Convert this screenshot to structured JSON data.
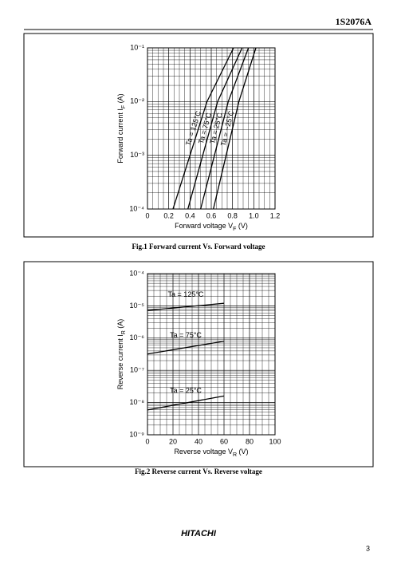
{
  "header": {
    "part_number": "1S2076A"
  },
  "footer": {
    "brand": "HITACHI",
    "page": "3"
  },
  "chart_data": [
    {
      "type": "line",
      "title": "Fig.1   Forward current Vs. Forward voltage",
      "xlabel": {
        "text": "Forward voltage  V",
        "sub": "F",
        "unit": "  (V)"
      },
      "ylabel": {
        "text": "Forward current  I",
        "sub": "F",
        "unit": "  (A)"
      },
      "ylog": true,
      "grid": true,
      "line_labels": "along",
      "xlim": [
        0,
        1.2
      ],
      "xticks": [
        0,
        0.2,
        0.4,
        0.6,
        0.8,
        {
          "value": 1,
          "label": "1.0"
        },
        1.2
      ],
      "ylim": [
        0.0001,
        0.1
      ],
      "yticks": [
        {
          "value": 0.0001,
          "label": "10⁻⁴"
        },
        {
          "value": 0.001,
          "label": "10⁻³"
        },
        {
          "value": 0.01,
          "label": "10⁻²"
        },
        {
          "value": 0.1,
          "label": "10⁻¹"
        }
      ],
      "series": [
        {
          "name": "Ta = 125°C",
          "color": "#000000",
          "x": [
            0.24,
            0.4,
            0.56,
            0.81
          ],
          "values": [
            0.0001,
            0.001,
            0.01,
            0.1
          ]
        },
        {
          "name": "Ta = 75°C",
          "color": "#000000",
          "x": [
            0.38,
            0.52,
            0.66,
            0.89
          ],
          "values": [
            0.0001,
            0.001,
            0.01,
            0.1
          ]
        },
        {
          "name": "Ta = 25°C",
          "color": "#000000",
          "x": [
            0.5,
            0.63,
            0.76,
            0.95
          ],
          "values": [
            0.0001,
            0.001,
            0.01,
            0.1
          ]
        },
        {
          "name": "Ta = −25°C",
          "color": "#000000",
          "x": [
            0.62,
            0.74,
            0.86,
            1.02
          ],
          "values": [
            0.0001,
            0.001,
            0.01,
            0.1
          ]
        }
      ]
    },
    {
      "type": "line",
      "title": "Fig.2   Reverse current Vs. Reverse voltage",
      "xlabel": {
        "text": "Reverse voltage  V",
        "sub": "R",
        "unit": "  (V)"
      },
      "ylabel": {
        "text": "Reverse current  I",
        "sub": "R",
        "unit": "  (A)"
      },
      "ylog": true,
      "grid": true,
      "line_labels": "above",
      "xlim": [
        0,
        100
      ],
      "xticks": [
        0,
        20,
        40,
        60,
        80,
        100
      ],
      "ylim": [
        1e-09,
        0.0001
      ],
      "yticks": [
        {
          "value": 1e-09,
          "label": "10⁻⁹"
        },
        {
          "value": 1e-08,
          "label": "10⁻⁸"
        },
        {
          "value": 1e-07,
          "label": "10⁻⁷"
        },
        {
          "value": 1e-06,
          "label": "10⁻⁶"
        },
        {
          "value": 1e-05,
          "label": "10⁻⁵"
        },
        {
          "value": 0.0001,
          "label": "10⁻⁴"
        }
      ],
      "series": [
        {
          "name": "Ta = 125°C",
          "color": "#000000",
          "x": [
            0,
            60
          ],
          "values": [
            7.2e-06,
            1.2e-05
          ]
        },
        {
          "name": "Ta = 75°C",
          "color": "#000000",
          "x": [
            0,
            60
          ],
          "values": [
            3.2e-07,
            8e-07
          ]
        },
        {
          "name": "Ta = 25°C",
          "color": "#000000",
          "x": [
            0,
            60
          ],
          "values": [
            5.9e-09,
            1.6e-08
          ]
        }
      ]
    }
  ]
}
